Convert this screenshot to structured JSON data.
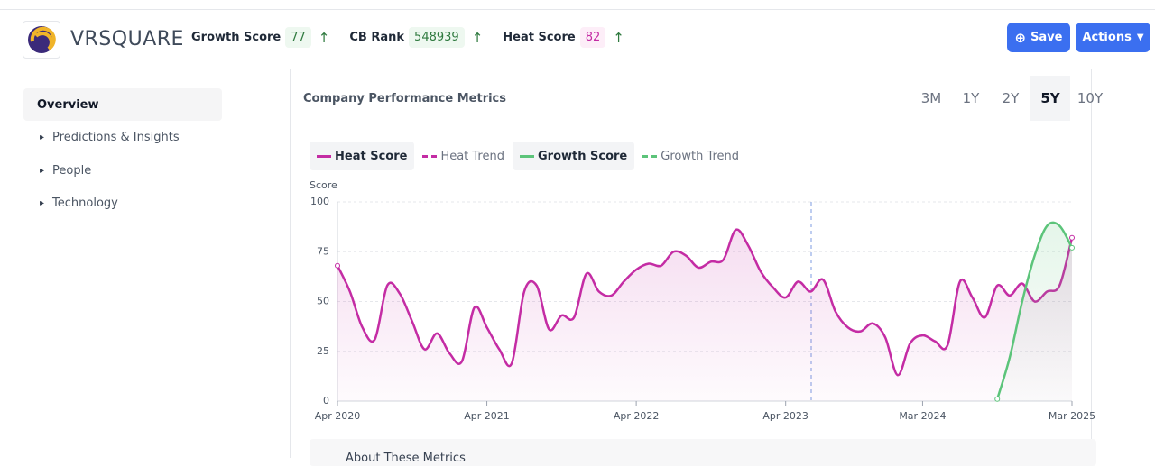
{
  "header": {
    "brand": "VRSQUARE",
    "metrics": [
      {
        "label": "Growth Score",
        "value": 77
      },
      {
        "label": "CB Rank",
        "value": 548939
      },
      {
        "label": "Heat Score",
        "value": 82
      }
    ],
    "buttons": [
      "Save",
      "Actions"
    ]
  },
  "sidebar": {
    "items": [
      "Overview",
      "Predictions & Insights",
      "People",
      "Technology"
    ]
  },
  "panel": {
    "title": "Company Performance Metrics",
    "ranges": [
      "3M",
      "1Y",
      "2Y",
      "5Y",
      "10Y"
    ],
    "active_range": "5Y",
    "footer": "About These Metrics"
  },
  "chart_data": {
    "type": "line",
    "y_label": "Score",
    "x": [
      "Apr 2020",
      "May 2020",
      "Jun 2020",
      "Jul 2020",
      "Aug 2020",
      "Sep 2020",
      "Oct 2020",
      "Nov 2020",
      "Dec 2020",
      "Jan 2021",
      "Feb 2021",
      "Mar 2021",
      "Apr 2021",
      "May 2021",
      "Jun 2021",
      "Jul 2021",
      "Aug 2021",
      "Sep 2021",
      "Oct 2021",
      "Nov 2021",
      "Dec 2021",
      "Jan 2022",
      "Feb 2022",
      "Mar 2022",
      "Apr 2022",
      "May 2022",
      "Jun 2022",
      "Jul 2022",
      "Aug 2022",
      "Sep 2022",
      "Oct 2022",
      "Nov 2022",
      "Dec 2022",
      "Jan 2023",
      "Feb 2023",
      "Mar 2023",
      "Apr 2023",
      "May 2023",
      "Jun 2023",
      "Jul 2023",
      "Aug 2023",
      "Sep 2023",
      "Oct 2023",
      "Nov 2023",
      "Dec 2023",
      "Jan 2024",
      "Feb 2024",
      "Mar 2024",
      "Apr 2024",
      "May 2024",
      "Jun 2024",
      "Jul 2024",
      "Aug 2024",
      "Sep 2024",
      "Oct 2024",
      "Nov 2024",
      "Dec 2024",
      "Jan 2025",
      "Feb 2025",
      "Mar 2025"
    ],
    "xticks": [
      "Apr 2020",
      "Apr 2021",
      "Apr 2022",
      "Apr 2023",
      "Mar 2024",
      "Mar 2025"
    ],
    "ylim": [
      0,
      100
    ],
    "yticks": [
      0,
      25,
      50,
      75,
      100
    ],
    "grid": true,
    "series": [
      {
        "name": "Heat Score",
        "color": "#c42ca4",
        "visible": true,
        "values": [
          68,
          55,
          37,
          31,
          58,
          54,
          40,
          26,
          34,
          24,
          20,
          47,
          37,
          26,
          19,
          55,
          58,
          36,
          43,
          42,
          64,
          55,
          53,
          60,
          66,
          69,
          68,
          75,
          73,
          67,
          70,
          71,
          86,
          78,
          65,
          57,
          52,
          60,
          55,
          61,
          45,
          37,
          35,
          39,
          32,
          13,
          29,
          33,
          30,
          28,
          60,
          52,
          42,
          58,
          53,
          59,
          50,
          55,
          58,
          82
        ]
      },
      {
        "name": "Heat Trend",
        "color": "#c42ca4",
        "dashed": true,
        "visible": false
      },
      {
        "name": "Growth Score",
        "color": "#5cc47a",
        "visible": true,
        "values": [
          null,
          null,
          null,
          null,
          null,
          null,
          null,
          null,
          null,
          null,
          null,
          null,
          null,
          null,
          null,
          null,
          null,
          null,
          null,
          null,
          null,
          null,
          null,
          null,
          null,
          null,
          null,
          null,
          null,
          null,
          null,
          null,
          null,
          null,
          null,
          null,
          null,
          null,
          null,
          null,
          null,
          null,
          null,
          null,
          null,
          null,
          null,
          null,
          null,
          null,
          null,
          null,
          null,
          1,
          22,
          50,
          73,
          88,
          88,
          77
        ]
      },
      {
        "name": "Growth Trend",
        "color": "#5cc47a",
        "dashed": true,
        "visible": false
      }
    ]
  }
}
